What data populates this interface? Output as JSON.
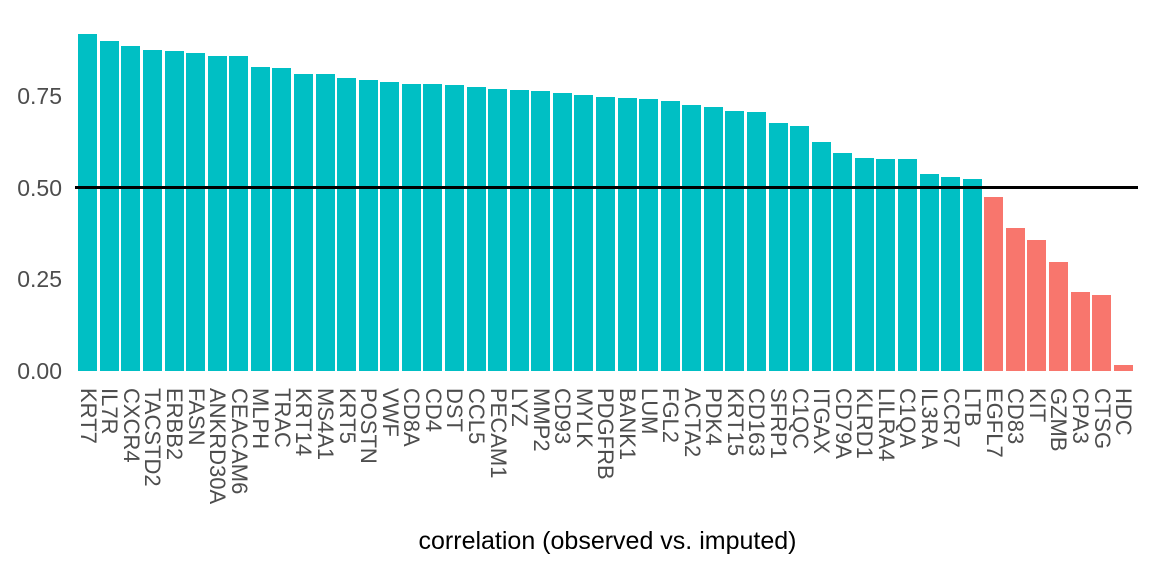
{
  "chart_data": {
    "type": "bar",
    "title": "",
    "xlabel": "correlation (observed vs. imputed)",
    "ylabel": "",
    "ylim": [
      0,
      0.95
    ],
    "yticks": [
      0,
      0.25,
      0.5,
      0.75
    ],
    "ytick_labels": [
      "0.00",
      "0.25",
      "0.50",
      "0.75"
    ],
    "grid": false,
    "legend": "none",
    "threshold": 0.5,
    "threshold_line_color": "#000000",
    "bar_color_above_threshold": "#00BFC4",
    "bar_color_below_threshold": "#F8766D",
    "axis_text_color": "#4d4d4d",
    "categories": [
      "KRT7",
      "IL7R",
      "CXCR4",
      "TACSTD2",
      "ERBB2",
      "FASN",
      "ANKRD30A",
      "CEACAM6",
      "MLPH",
      "TRAC",
      "KRT14",
      "MS4A1",
      "KRT5",
      "POSTN",
      "VWF",
      "CD8A",
      "CD4",
      "DST",
      "CCL5",
      "PECAM1",
      "LYZ",
      "MMP2",
      "CD93",
      "MYLK",
      "PDGFRB",
      "BANK1",
      "LUM",
      "FGL2",
      "ACTA2",
      "PDK4",
      "KRT15",
      "CD163",
      "SFRP1",
      "C1QC",
      "ITGAX",
      "CD79A",
      "KLRD1",
      "LILRA4",
      "C1QA",
      "IL3RA",
      "CCR7",
      "LTB",
      "EGFL7",
      "CD83",
      "KIT",
      "GZMB",
      "CPA3",
      "CTSG",
      "HDC"
    ],
    "values": [
      0.92,
      0.9,
      0.885,
      0.874,
      0.873,
      0.867,
      0.859,
      0.858,
      0.828,
      0.827,
      0.811,
      0.81,
      0.799,
      0.794,
      0.788,
      0.783,
      0.782,
      0.779,
      0.773,
      0.768,
      0.765,
      0.763,
      0.759,
      0.752,
      0.747,
      0.743,
      0.742,
      0.736,
      0.725,
      0.72,
      0.709,
      0.707,
      0.677,
      0.668,
      0.623,
      0.595,
      0.58,
      0.578,
      0.577,
      0.538,
      0.529,
      0.523,
      0.474,
      0.391,
      0.356,
      0.297,
      0.216,
      0.207,
      0.016
    ]
  }
}
